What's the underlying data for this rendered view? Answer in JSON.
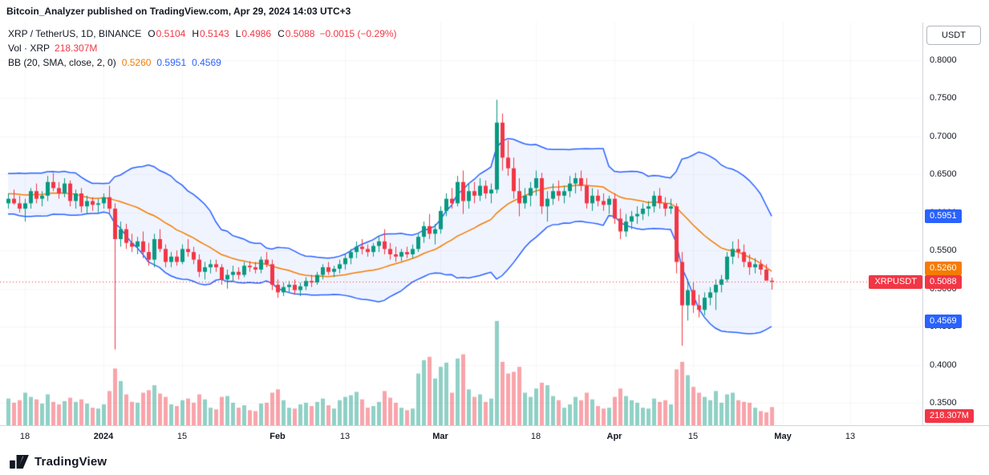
{
  "attribution": "Bitcoin_Analyzer published on TradingView.com, Apr 29, 2024 14:03 UTC+3",
  "legend": {
    "symbol": "XRP / TetherUS, 1D, BINANCE",
    "ohlc": [
      {
        "label": "O",
        "value": "0.5104"
      },
      {
        "label": "H",
        "value": "0.5143"
      },
      {
        "label": "L",
        "value": "0.4986"
      },
      {
        "label": "C",
        "value": "0.5088"
      }
    ],
    "change": "−0.0015 (−0.29%)",
    "volume": {
      "label": "Vol · XRP",
      "value": "218.307M"
    },
    "bb": {
      "label": "BB (20, SMA, close, 2, 0)",
      "values": [
        {
          "value": "0.5260",
          "color": "#F57C00"
        },
        {
          "value": "0.5951",
          "color": "#2962FF"
        },
        {
          "value": "0.4569",
          "color": "#2962FF"
        }
      ]
    }
  },
  "price_axis": {
    "currency": "USDT",
    "ticks": [
      "0.8000",
      "0.7500",
      "0.7000",
      "0.6500",
      "0.6000",
      "0.5500",
      "0.5000",
      "0.4500",
      "0.4000",
      "0.3500"
    ],
    "badges": [
      {
        "name": "bb-upper-badge",
        "value": "0.5951",
        "color": "#2962FF"
      },
      {
        "name": "bb-basis-badge",
        "value": "0.5260",
        "color": "#F57C00"
      },
      {
        "name": "last-price-badge",
        "value": "0.5088",
        "color": "#F23645"
      },
      {
        "name": "bb-lower-badge",
        "value": "0.4569",
        "color": "#2962FF"
      },
      {
        "name": "volume-badge",
        "value": "218.307M",
        "color": "#F23645",
        "kind": "volume"
      }
    ]
  },
  "time_axis": {
    "ticks": [
      {
        "label": "18",
        "day": 3
      },
      {
        "label": "2024",
        "day": 17,
        "major": true
      },
      {
        "label": "15",
        "day": 31
      },
      {
        "label": "Feb",
        "day": 48,
        "major": true
      },
      {
        "label": "13",
        "day": 60
      },
      {
        "label": "Mar",
        "day": 77,
        "major": true
      },
      {
        "label": "18",
        "day": 94
      },
      {
        "label": "Apr",
        "day": 108,
        "major": true
      },
      {
        "label": "15",
        "day": 122
      },
      {
        "label": "May",
        "day": 138,
        "major": true
      },
      {
        "label": "13",
        "day": 150
      }
    ]
  },
  "last_price_tag": {
    "label": "XRPUSDT",
    "value": "0.5088"
  },
  "footer": {
    "brand": "TradingView"
  },
  "colors": {
    "up": "#089981",
    "down": "#F23645",
    "vol_up": "rgba(8,153,129,0.45)",
    "vol_down": "rgba(242,54,69,0.45)",
    "bb_band": "#2962FF",
    "bb_basis": "#F57C00",
    "bb_fill": "rgba(41,98,255,0.07)",
    "last_price": "#F23645",
    "grid": "rgba(42,46,57,0.045)",
    "axis_text": "#131722"
  },
  "chart_data": {
    "type": "candlestick",
    "title": "XRP / TetherUS, 1D, BINANCE",
    "symbol": "XRPUSDT",
    "exchange": "BINANCE",
    "interval": "1D",
    "quote_currency": "USDT",
    "last": {
      "open": 0.5104,
      "high": 0.5143,
      "low": 0.4986,
      "close": 0.5088,
      "change": -0.0015,
      "change_pct": -0.29,
      "volume_label": "218.307M"
    },
    "indicator": {
      "name": "Bollinger Bands",
      "length": 20,
      "source": "close",
      "mult": 2,
      "basis": 0.526,
      "upper": 0.5951,
      "lower": 0.4569
    },
    "y_axis": {
      "ticks": [
        0.8,
        0.75,
        0.7,
        0.65,
        0.6,
        0.55,
        0.5,
        0.45,
        0.4,
        0.35
      ],
      "range_shown": [
        0.35,
        0.847
      ]
    },
    "x_axis": {
      "visible_start": "2023-12-15",
      "visible_end": "2024-04-29",
      "tick_labels": [
        "18",
        "2024",
        "15",
        "Feb",
        "13",
        "Mar",
        "18",
        "Apr",
        "15",
        "May",
        "13"
      ]
    },
    "warmup_candles": 19,
    "visible_candles": 137,
    "candles_format": [
      "open",
      "high",
      "low",
      "close",
      "volume_millions"
    ],
    "candles": [
      [
        0.605,
        0.618,
        0.598,
        0.612,
        280
      ],
      [
        0.612,
        0.625,
        0.605,
        0.62,
        300
      ],
      [
        0.62,
        0.635,
        0.61,
        0.628,
        320
      ],
      [
        0.628,
        0.64,
        0.618,
        0.622,
        290
      ],
      [
        0.622,
        0.63,
        0.608,
        0.615,
        270
      ],
      [
        0.615,
        0.628,
        0.605,
        0.622,
        300
      ],
      [
        0.622,
        0.632,
        0.612,
        0.618,
        260
      ],
      [
        0.618,
        0.625,
        0.6,
        0.608,
        310
      ],
      [
        0.608,
        0.64,
        0.602,
        0.635,
        380
      ],
      [
        0.635,
        0.65,
        0.622,
        0.63,
        360
      ],
      [
        0.63,
        0.645,
        0.618,
        0.638,
        340
      ],
      [
        0.638,
        0.648,
        0.625,
        0.632,
        300
      ],
      [
        0.632,
        0.66,
        0.628,
        0.655,
        420
      ],
      [
        0.655,
        0.668,
        0.64,
        0.648,
        390
      ],
      [
        0.648,
        0.662,
        0.635,
        0.642,
        330
      ],
      [
        0.642,
        0.655,
        0.6,
        0.612,
        460
      ],
      [
        0.612,
        0.628,
        0.595,
        0.605,
        410
      ],
      [
        0.605,
        0.622,
        0.598,
        0.618,
        330
      ],
      [
        0.618,
        0.63,
        0.608,
        0.612,
        290
      ],
      [
        0.612,
        0.625,
        0.605,
        0.618,
        320
      ],
      [
        0.618,
        0.63,
        0.61,
        0.612,
        270
      ],
      [
        0.612,
        0.622,
        0.6,
        0.605,
        300
      ],
      [
        0.605,
        0.618,
        0.588,
        0.612,
        390
      ],
      [
        0.612,
        0.632,
        0.605,
        0.628,
        340
      ],
      [
        0.628,
        0.638,
        0.612,
        0.618,
        310
      ],
      [
        0.618,
        0.628,
        0.608,
        0.622,
        260
      ],
      [
        0.622,
        0.648,
        0.615,
        0.64,
        370
      ],
      [
        0.64,
        0.652,
        0.628,
        0.632,
        280
      ],
      [
        0.632,
        0.64,
        0.618,
        0.625,
        250
      ],
      [
        0.625,
        0.645,
        0.62,
        0.638,
        290
      ],
      [
        0.638,
        0.642,
        0.608,
        0.615,
        330
      ],
      [
        0.615,
        0.63,
        0.605,
        0.625,
        280
      ],
      [
        0.625,
        0.632,
        0.6,
        0.608,
        310
      ],
      [
        0.608,
        0.622,
        0.598,
        0.615,
        260
      ],
      [
        0.615,
        0.62,
        0.602,
        0.61,
        210
      ],
      [
        0.61,
        0.618,
        0.6,
        0.612,
        200
      ],
      [
        0.612,
        0.625,
        0.605,
        0.62,
        250
      ],
      [
        0.62,
        0.635,
        0.598,
        0.605,
        410
      ],
      [
        0.605,
        0.612,
        0.42,
        0.565,
        680
      ],
      [
        0.565,
        0.588,
        0.555,
        0.578,
        530
      ],
      [
        0.578,
        0.585,
        0.552,
        0.56,
        370
      ],
      [
        0.56,
        0.572,
        0.548,
        0.555,
        280
      ],
      [
        0.555,
        0.568,
        0.545,
        0.562,
        270
      ],
      [
        0.562,
        0.575,
        0.54,
        0.548,
        390
      ],
      [
        0.548,
        0.56,
        0.53,
        0.538,
        420
      ],
      [
        0.538,
        0.572,
        0.528,
        0.565,
        480
      ],
      [
        0.565,
        0.578,
        0.548,
        0.552,
        380
      ],
      [
        0.552,
        0.558,
        0.528,
        0.535,
        340
      ],
      [
        0.535,
        0.548,
        0.528,
        0.542,
        250
      ],
      [
        0.542,
        0.55,
        0.53,
        0.535,
        230
      ],
      [
        0.535,
        0.558,
        0.532,
        0.552,
        300
      ],
      [
        0.552,
        0.565,
        0.542,
        0.548,
        320
      ],
      [
        0.548,
        0.555,
        0.532,
        0.538,
        270
      ],
      [
        0.538,
        0.545,
        0.515,
        0.522,
        370
      ],
      [
        0.522,
        0.535,
        0.512,
        0.528,
        310
      ],
      [
        0.528,
        0.538,
        0.52,
        0.532,
        210
      ],
      [
        0.532,
        0.538,
        0.522,
        0.528,
        190
      ],
      [
        0.528,
        0.532,
        0.505,
        0.512,
        340
      ],
      [
        0.512,
        0.525,
        0.5,
        0.518,
        350
      ],
      [
        0.518,
        0.53,
        0.51,
        0.522,
        270
      ],
      [
        0.522,
        0.528,
        0.512,
        0.518,
        210
      ],
      [
        0.518,
        0.535,
        0.515,
        0.53,
        240
      ],
      [
        0.53,
        0.536,
        0.522,
        0.528,
        180
      ],
      [
        0.528,
        0.535,
        0.52,
        0.525,
        170
      ],
      [
        0.525,
        0.542,
        0.52,
        0.538,
        260
      ],
      [
        0.538,
        0.548,
        0.528,
        0.532,
        270
      ],
      [
        0.532,
        0.538,
        0.498,
        0.505,
        390
      ],
      [
        0.505,
        0.512,
        0.488,
        0.495,
        430
      ],
      [
        0.495,
        0.508,
        0.49,
        0.502,
        300
      ],
      [
        0.502,
        0.51,
        0.495,
        0.505,
        210
      ],
      [
        0.505,
        0.512,
        0.492,
        0.498,
        200
      ],
      [
        0.498,
        0.508,
        0.49,
        0.503,
        250
      ],
      [
        0.503,
        0.515,
        0.498,
        0.51,
        270
      ],
      [
        0.51,
        0.518,
        0.502,
        0.508,
        230
      ],
      [
        0.508,
        0.522,
        0.505,
        0.518,
        280
      ],
      [
        0.518,
        0.532,
        0.512,
        0.528,
        320
      ],
      [
        0.528,
        0.535,
        0.518,
        0.522,
        240
      ],
      [
        0.522,
        0.53,
        0.515,
        0.526,
        200
      ],
      [
        0.526,
        0.538,
        0.52,
        0.532,
        300
      ],
      [
        0.532,
        0.545,
        0.525,
        0.54,
        340
      ],
      [
        0.54,
        0.552,
        0.532,
        0.548,
        360
      ],
      [
        0.548,
        0.562,
        0.54,
        0.555,
        400
      ],
      [
        0.555,
        0.565,
        0.545,
        0.552,
        310
      ],
      [
        0.552,
        0.558,
        0.542,
        0.548,
        210
      ],
      [
        0.548,
        0.56,
        0.542,
        0.556,
        230
      ],
      [
        0.556,
        0.568,
        0.548,
        0.562,
        280
      ],
      [
        0.562,
        0.578,
        0.545,
        0.552,
        410
      ],
      [
        0.552,
        0.56,
        0.538,
        0.545,
        330
      ],
      [
        0.545,
        0.555,
        0.535,
        0.542,
        270
      ],
      [
        0.542,
        0.552,
        0.536,
        0.548,
        210
      ],
      [
        0.548,
        0.555,
        0.54,
        0.545,
        180
      ],
      [
        0.545,
        0.558,
        0.54,
        0.552,
        200
      ],
      [
        0.552,
        0.572,
        0.548,
        0.568,
        620
      ],
      [
        0.568,
        0.588,
        0.56,
        0.582,
        780
      ],
      [
        0.582,
        0.598,
        0.565,
        0.572,
        820
      ],
      [
        0.572,
        0.585,
        0.558,
        0.578,
        560
      ],
      [
        0.578,
        0.608,
        0.572,
        0.602,
        700
      ],
      [
        0.602,
        0.625,
        0.595,
        0.618,
        750
      ],
      [
        0.618,
        0.632,
        0.605,
        0.612,
        390
      ],
      [
        0.612,
        0.648,
        0.608,
        0.64,
        800
      ],
      [
        0.64,
        0.655,
        0.598,
        0.615,
        850
      ],
      [
        0.615,
        0.638,
        0.605,
        0.628,
        430
      ],
      [
        0.628,
        0.64,
        0.612,
        0.622,
        340
      ],
      [
        0.622,
        0.645,
        0.615,
        0.635,
        370
      ],
      [
        0.635,
        0.642,
        0.618,
        0.625,
        280
      ],
      [
        0.625,
        0.638,
        0.612,
        0.63,
        320
      ],
      [
        0.63,
        0.748,
        0.625,
        0.718,
        1250
      ],
      [
        0.718,
        0.73,
        0.655,
        0.672,
        760
      ],
      [
        0.672,
        0.695,
        0.648,
        0.658,
        620
      ],
      [
        0.658,
        0.672,
        0.618,
        0.628,
        640
      ],
      [
        0.628,
        0.645,
        0.595,
        0.612,
        700
      ],
      [
        0.612,
        0.632,
        0.605,
        0.622,
        390
      ],
      [
        0.622,
        0.64,
        0.608,
        0.632,
        340
      ],
      [
        0.632,
        0.655,
        0.622,
        0.645,
        440
      ],
      [
        0.645,
        0.652,
        0.598,
        0.608,
        510
      ],
      [
        0.608,
        0.628,
        0.588,
        0.618,
        480
      ],
      [
        0.618,
        0.638,
        0.61,
        0.628,
        350
      ],
      [
        0.628,
        0.642,
        0.615,
        0.622,
        300
      ],
      [
        0.622,
        0.635,
        0.612,
        0.628,
        210
      ],
      [
        0.628,
        0.648,
        0.62,
        0.638,
        250
      ],
      [
        0.638,
        0.652,
        0.625,
        0.645,
        340
      ],
      [
        0.645,
        0.655,
        0.628,
        0.635,
        300
      ],
      [
        0.635,
        0.645,
        0.605,
        0.612,
        390
      ],
      [
        0.612,
        0.632,
        0.602,
        0.622,
        310
      ],
      [
        0.622,
        0.63,
        0.608,
        0.615,
        230
      ],
      [
        0.615,
        0.625,
        0.602,
        0.61,
        200
      ],
      [
        0.61,
        0.622,
        0.598,
        0.618,
        210
      ],
      [
        0.618,
        0.625,
        0.585,
        0.592,
        340
      ],
      [
        0.592,
        0.605,
        0.565,
        0.575,
        440
      ],
      [
        0.575,
        0.598,
        0.568,
        0.588,
        350
      ],
      [
        0.588,
        0.602,
        0.578,
        0.595,
        300
      ],
      [
        0.595,
        0.608,
        0.585,
        0.598,
        270
      ],
      [
        0.598,
        0.612,
        0.59,
        0.605,
        210
      ],
      [
        0.605,
        0.615,
        0.595,
        0.608,
        200
      ],
      [
        0.608,
        0.628,
        0.6,
        0.622,
        320
      ],
      [
        0.622,
        0.632,
        0.605,
        0.612,
        280
      ],
      [
        0.612,
        0.62,
        0.595,
        0.605,
        300
      ],
      [
        0.605,
        0.618,
        0.598,
        0.608,
        250
      ],
      [
        0.608,
        0.612,
        0.52,
        0.535,
        670
      ],
      [
        0.535,
        0.548,
        0.425,
        0.478,
        760
      ],
      [
        0.478,
        0.512,
        0.458,
        0.498,
        600
      ],
      [
        0.498,
        0.508,
        0.468,
        0.478,
        460
      ],
      [
        0.478,
        0.492,
        0.462,
        0.472,
        390
      ],
      [
        0.472,
        0.495,
        0.465,
        0.488,
        340
      ],
      [
        0.488,
        0.502,
        0.478,
        0.495,
        300
      ],
      [
        0.495,
        0.512,
        0.472,
        0.505,
        410
      ],
      [
        0.505,
        0.518,
        0.495,
        0.512,
        270
      ],
      [
        0.512,
        0.548,
        0.508,
        0.542,
        370
      ],
      [
        0.542,
        0.562,
        0.532,
        0.552,
        390
      ],
      [
        0.552,
        0.565,
        0.54,
        0.548,
        300
      ],
      [
        0.548,
        0.558,
        0.528,
        0.535,
        280
      ],
      [
        0.535,
        0.545,
        0.518,
        0.528,
        270
      ],
      [
        0.528,
        0.54,
        0.52,
        0.532,
        210
      ],
      [
        0.532,
        0.538,
        0.518,
        0.525,
        170
      ],
      [
        0.525,
        0.532,
        0.512,
        0.5104,
        155
      ],
      [
        0.5104,
        0.5143,
        0.4986,
        0.5088,
        218.307
      ]
    ]
  }
}
